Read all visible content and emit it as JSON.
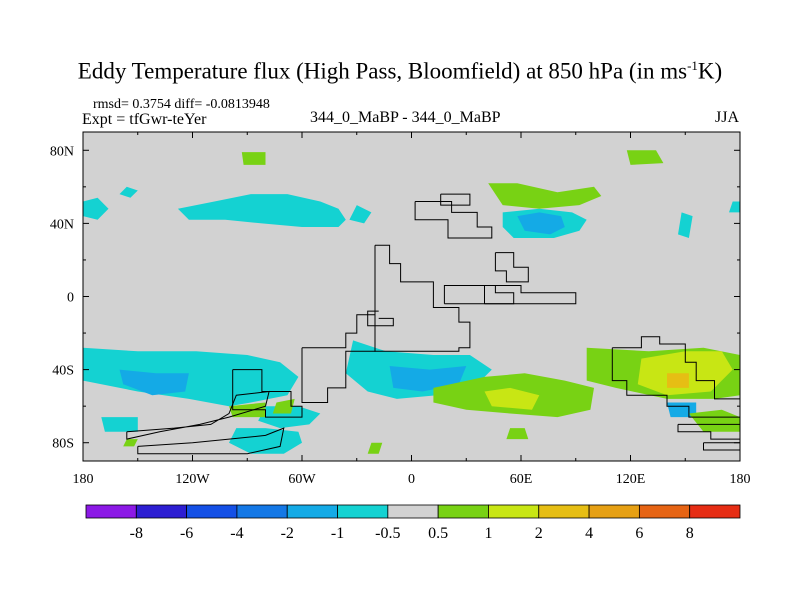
{
  "chart_data": {
    "type": "contour-map",
    "title_main": "Eddy Temperature flux (High Pass, Bloomfield) at 850 hPa (in ms",
    "title_sup": "-1",
    "title_tail": "K)",
    "stats": "rmsd= 0.3754 diff= -0.0813948",
    "expt": "Expt = tfGwr-teYer",
    "case": "344_0_MaBP - 344_0_MaBP",
    "season": "JJA",
    "lon_ticks": [
      {
        "value": -180,
        "label": "180"
      },
      {
        "value": -120,
        "label": "120W"
      },
      {
        "value": -60,
        "label": "60W"
      },
      {
        "value": 0,
        "label": "0"
      },
      {
        "value": 60,
        "label": "60E"
      },
      {
        "value": 120,
        "label": "120E"
      },
      {
        "value": 180,
        "label": "180"
      }
    ],
    "lat_ticks": [
      {
        "value": 80,
        "label": "80N"
      },
      {
        "value": 40,
        "label": "40N"
      },
      {
        "value": 0,
        "label": "0"
      },
      {
        "value": -40,
        "label": "40S"
      },
      {
        "value": -80,
        "label": "80S"
      }
    ],
    "lon_range": [
      -180,
      180
    ],
    "lat_range": [
      -90,
      90
    ],
    "background_color": "#d2d2d2",
    "colorbar": {
      "colors": [
        "#8c19e6",
        "#2d1ed2",
        "#1450e6",
        "#1478e6",
        "#14aae6",
        "#14d2d2",
        "#d2d2d2",
        "#78d214",
        "#c8e614",
        "#e6be14",
        "#e6a014",
        "#e66414",
        "#e62d14"
      ],
      "labels": [
        "-8",
        "-6",
        "-4",
        "-2",
        "-1",
        "-0.5",
        "0.5",
        "1",
        "2",
        "4",
        "6",
        "8"
      ]
    },
    "regions": [
      {
        "color": "#14d2d2",
        "lon": [
          -128,
          -108,
          -88,
          -68,
          -50,
          -40,
          -36,
          -40,
          -60,
          -82,
          -102,
          -122
        ],
        "lat": [
          48,
          52,
          56,
          56,
          52,
          48,
          42,
          38,
          38,
          40,
          42,
          42
        ]
      },
      {
        "color": "#14d2d2",
        "lon": [
          -180,
          -172,
          -166,
          -172,
          -180
        ],
        "lat": [
          52,
          54,
          48,
          42,
          44
        ]
      },
      {
        "color": "#14d2d2",
        "lon": [
          -156,
          -150,
          -154,
          -160
        ],
        "lat": [
          60,
          58,
          54,
          56
        ]
      },
      {
        "color": "#14d2d2",
        "lon": [
          -30,
          -22,
          -26,
          -34
        ],
        "lat": [
          50,
          46,
          40,
          42
        ]
      },
      {
        "color": "#14d2d2",
        "lon": [
          176,
          180,
          180,
          174
        ],
        "lat": [
          52,
          52,
          46,
          46
        ]
      },
      {
        "color": "#78d214",
        "lon": [
          -93,
          -80,
          -80,
          -92
        ],
        "lat": [
          79,
          79,
          72,
          72
        ]
      },
      {
        "color": "#78d214",
        "lon": [
          118,
          134,
          138,
          120
        ],
        "lat": [
          80,
          80,
          73,
          72
        ]
      },
      {
        "color": "#78d214",
        "lon": [
          42,
          58,
          80,
          100,
          104,
          92,
          70,
          50
        ],
        "lat": [
          62,
          62,
          57,
          60,
          55,
          50,
          48,
          50
        ]
      },
      {
        "color": "#14d2d2",
        "lon": [
          50,
          70,
          88,
          96,
          92,
          78,
          56,
          50
        ],
        "lat": [
          46,
          48,
          46,
          42,
          36,
          32,
          32,
          38
        ]
      },
      {
        "color": "#14aae6",
        "lon": [
          58,
          70,
          82,
          84,
          76,
          62
        ],
        "lat": [
          44,
          46,
          44,
          38,
          34,
          36
        ]
      },
      {
        "color": "#14d2d2",
        "lon": [
          148,
          154,
          152,
          146
        ],
        "lat": [
          46,
          44,
          32,
          34
        ]
      },
      {
        "color": "#14d2d2",
        "lon": [
          -180,
          -150,
          -118,
          -90,
          -72,
          -62,
          -68,
          -88,
          -100,
          -122,
          -150,
          -180
        ],
        "lat": [
          -28,
          -30,
          -30,
          -32,
          -36,
          -44,
          -54,
          -58,
          -60,
          -56,
          -52,
          -46
        ]
      },
      {
        "color": "#14aae6",
        "lon": [
          -160,
          -140,
          -122,
          -124,
          -142,
          -158
        ],
        "lat": [
          -40,
          -42,
          -42,
          -52,
          -54,
          -48
        ]
      },
      {
        "color": "#14d2d2",
        "lon": [
          -80,
          -62,
          -50,
          -56,
          -72,
          -84
        ],
        "lat": [
          -60,
          -60,
          -64,
          -70,
          -72,
          -68
        ]
      },
      {
        "color": "#14d2d2",
        "lon": [
          -96,
          -80,
          -62,
          -60,
          -70,
          -88,
          -100
        ],
        "lat": [
          -72,
          -72,
          -74,
          -80,
          -86,
          -86,
          -80
        ]
      },
      {
        "color": "#14d2d2",
        "lon": [
          -170,
          -150,
          -150,
          -168
        ],
        "lat": [
          -66,
          -66,
          -74,
          -74
        ]
      },
      {
        "color": "#14d2d2",
        "lon": [
          -32,
          -14,
          12,
          32,
          44,
          34,
          14,
          -8,
          -24,
          -36
        ],
        "lat": [
          -24,
          -30,
          -32,
          -32,
          -40,
          -50,
          -54,
          -56,
          -52,
          -42
        ]
      },
      {
        "color": "#14aae6",
        "lon": [
          -12,
          10,
          30,
          26,
          6,
          -10
        ],
        "lat": [
          -38,
          -40,
          -38,
          -48,
          -52,
          -50
        ]
      },
      {
        "color": "#78d214",
        "lon": [
          12,
          40,
          62,
          84,
          100,
          98,
          80,
          54,
          30,
          12
        ],
        "lat": [
          -50,
          -44,
          -42,
          -46,
          -50,
          -62,
          -66,
          -64,
          -62,
          -58
        ]
      },
      {
        "color": "#c8e614",
        "lon": [
          40,
          54,
          70,
          66,
          44
        ],
        "lat": [
          -52,
          -50,
          -54,
          -62,
          -60
        ]
      },
      {
        "color": "#78d214",
        "lon": [
          -100,
          -80,
          -80,
          -98
        ],
        "lat": [
          -60,
          -58,
          -66,
          -66
        ]
      },
      {
        "color": "#78d214",
        "lon": [
          -74,
          -64,
          -66,
          -76
        ],
        "lat": [
          -58,
          -56,
          -64,
          -64
        ]
      },
      {
        "color": "#78d214",
        "lon": [
          96,
          130,
          160,
          180,
          180,
          166,
          140,
          112,
          96
        ],
        "lat": [
          -28,
          -30,
          -28,
          -32,
          -54,
          -56,
          -56,
          -50,
          -46
        ]
      },
      {
        "color": "#c8e614",
        "lon": [
          126,
          150,
          170,
          176,
          164,
          140,
          124
        ],
        "lat": [
          -34,
          -30,
          -30,
          -40,
          -52,
          -54,
          -48
        ]
      },
      {
        "color": "#e6be14",
        "lon": [
          140,
          152,
          152,
          140
        ],
        "lat": [
          -42,
          -42,
          -50,
          -50
        ]
      },
      {
        "color": "#14aae6",
        "lon": [
          140,
          156,
          156,
          142
        ],
        "lat": [
          -58,
          -58,
          -66,
          -66
        ]
      },
      {
        "color": "#78d214",
        "lon": [
          152,
          170,
          180,
          180,
          160
        ],
        "lat": [
          -64,
          -62,
          -66,
          -74,
          -74
        ]
      },
      {
        "color": "#78d214",
        "lon": [
          54,
          62,
          64,
          52
        ],
        "lat": [
          -72,
          -72,
          -78,
          -78
        ]
      },
      {
        "color": "#78d214",
        "lon": [
          -156,
          -150,
          -152,
          -158
        ],
        "lat": [
          -78,
          -78,
          -82,
          -82
        ]
      },
      {
        "color": "#78d214",
        "lon": [
          -22,
          -16,
          -18,
          -24
        ],
        "lat": [
          -80,
          -80,
          -86,
          -86
        ]
      }
    ],
    "continent_outlines": [
      {
        "lon": [
          -20,
          -12,
          -12,
          -6,
          -6,
          12,
          12,
          26,
          26,
          32,
          32,
          26,
          26,
          -20,
          -20
        ],
        "lat": [
          28,
          28,
          18,
          18,
          8,
          8,
          -6,
          -6,
          -14,
          -14,
          -28,
          -28,
          -30,
          -30,
          28
        ]
      },
      {
        "lon": [
          -60,
          -36,
          -36,
          -30,
          -30,
          -20,
          -20,
          -36,
          -36,
          -46,
          -46,
          -60,
          -60
        ],
        "lat": [
          -28,
          -28,
          -20,
          -20,
          -10,
          -10,
          -30,
          -30,
          -50,
          -50,
          -58,
          -58,
          -28
        ]
      },
      {
        "lon": [
          -98,
          -82,
          -82,
          -66,
          -66,
          -60,
          -60,
          -80,
          -80,
          -98,
          -98
        ],
        "lat": [
          -40,
          -40,
          -52,
          -52,
          -60,
          -60,
          -66,
          -66,
          -62,
          -62,
          -40
        ]
      },
      {
        "lon": [
          -156,
          -130,
          -110,
          -100,
          -96,
          -78,
          -80,
          -100,
          -116,
          -138,
          -156,
          -156
        ],
        "lat": [
          -74,
          -72,
          -70,
          -64,
          -54,
          -52,
          -60,
          -66,
          -70,
          -74,
          -78,
          -74
        ]
      },
      {
        "lon": [
          -150,
          -120,
          -100,
          -80,
          -70,
          -72,
          -90,
          -110,
          -130,
          -150,
          -150
        ],
        "lat": [
          -82,
          -80,
          -78,
          -76,
          -72,
          -82,
          -86,
          -86,
          -86,
          -86,
          -82
        ]
      },
      {
        "lon": [
          2,
          22,
          22,
          36,
          36,
          44,
          44,
          20,
          20,
          2,
          2
        ],
        "lat": [
          52,
          52,
          46,
          46,
          38,
          38,
          32,
          32,
          42,
          42,
          52
        ]
      },
      {
        "lon": [
          16,
          32,
          32,
          16,
          16
        ],
        "lat": [
          56,
          56,
          50,
          50,
          56
        ]
      },
      {
        "lon": [
          46,
          56,
          56,
          64,
          64,
          52,
          52,
          46,
          46
        ],
        "lat": [
          24,
          24,
          16,
          16,
          8,
          8,
          14,
          14,
          24
        ]
      },
      {
        "lon": [
          18,
          90,
          90,
          60,
          60,
          18,
          18
        ],
        "lat": [
          -4,
          -4,
          2,
          2,
          6,
          6,
          -4
        ]
      },
      {
        "lon": [
          40,
          56,
          56,
          46,
          46,
          40,
          40
        ],
        "lat": [
          -4,
          -4,
          2,
          2,
          6,
          6,
          -4
        ]
      },
      {
        "lon": [
          110,
          126,
          126,
          136,
          136,
          150,
          150,
          156,
          156,
          166,
          166,
          180,
          180,
          152,
          152,
          140,
          140,
          118,
          118,
          110,
          110
        ],
        "lat": [
          -28,
          -28,
          -22,
          -22,
          -26,
          -26,
          -36,
          -36,
          -46,
          -46,
          -56,
          -56,
          -66,
          -66,
          -60,
          -60,
          -54,
          -54,
          -46,
          -46,
          -28
        ]
      },
      {
        "lon": [
          146,
          180,
          180,
          164,
          164,
          146,
          146
        ],
        "lat": [
          -70,
          -70,
          -78,
          -78,
          -74,
          -74,
          -70
        ]
      },
      {
        "lon": [
          160,
          180,
          180,
          160,
          160
        ],
        "lat": [
          -80,
          -80,
          -84,
          -84,
          -80
        ]
      },
      {
        "lon": [
          -18,
          -24,
          -24,
          -10,
          -10,
          -18
        ],
        "lat": [
          -8,
          -8,
          -16,
          -16,
          -12,
          -12
        ]
      }
    ]
  }
}
